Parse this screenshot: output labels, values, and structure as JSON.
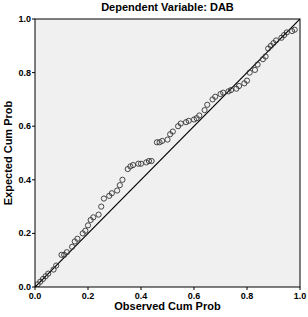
{
  "chart_data": {
    "type": "scatter",
    "title": "Dependent Variable: DAB",
    "x_label": "Observed Cum Prob",
    "y_label": "Expected Cum Prob",
    "x": [
      0.01,
      0.02,
      0.03,
      0.04,
      0.05,
      0.07,
      0.08,
      0.1,
      0.11,
      0.12,
      0.14,
      0.15,
      0.16,
      0.18,
      0.19,
      0.2,
      0.21,
      0.22,
      0.24,
      0.25,
      0.26,
      0.28,
      0.29,
      0.31,
      0.32,
      0.33,
      0.35,
      0.36,
      0.37,
      0.39,
      0.4,
      0.42,
      0.43,
      0.44,
      0.46,
      0.47,
      0.48,
      0.5,
      0.51,
      0.52,
      0.54,
      0.55,
      0.57,
      0.58,
      0.6,
      0.61,
      0.62,
      0.64,
      0.65,
      0.67,
      0.68,
      0.7,
      0.71,
      0.73,
      0.74,
      0.76,
      0.77,
      0.79,
      0.8,
      0.81,
      0.83,
      0.84,
      0.86,
      0.87,
      0.88,
      0.89,
      0.9,
      0.91,
      0.93,
      0.94,
      0.95,
      0.97,
      0.98
    ],
    "values": [
      0.01,
      0.02,
      0.03,
      0.04,
      0.05,
      0.065,
      0.08,
      0.12,
      0.12,
      0.13,
      0.15,
      0.17,
      0.18,
      0.2,
      0.21,
      0.23,
      0.25,
      0.26,
      0.27,
      0.3,
      0.33,
      0.34,
      0.35,
      0.36,
      0.38,
      0.4,
      0.44,
      0.45,
      0.455,
      0.46,
      0.46,
      0.465,
      0.47,
      0.47,
      0.54,
      0.54,
      0.545,
      0.55,
      0.57,
      0.58,
      0.6,
      0.61,
      0.615,
      0.62,
      0.625,
      0.63,
      0.64,
      0.66,
      0.68,
      0.7,
      0.71,
      0.72,
      0.725,
      0.73,
      0.735,
      0.74,
      0.75,
      0.76,
      0.77,
      0.8,
      0.81,
      0.83,
      0.85,
      0.86,
      0.89,
      0.9,
      0.91,
      0.92,
      0.93,
      0.94,
      0.95,
      0.955,
      0.96
    ],
    "color": "#333333",
    "marker": "circle",
    "xlim": [
      0,
      1
    ],
    "ylim": [
      0,
      1
    ],
    "xticks": [
      {
        "value": 0,
        "label": "0.0"
      },
      0.2,
      0.4,
      0.6,
      0.8,
      {
        "value": 1,
        "label": "1.0"
      }
    ],
    "yticks": [
      {
        "value": 0,
        "label": "0.0"
      },
      0.2,
      0.4,
      0.6,
      0.8,
      {
        "value": 1,
        "label": "1.0"
      }
    ],
    "grid": false
  }
}
